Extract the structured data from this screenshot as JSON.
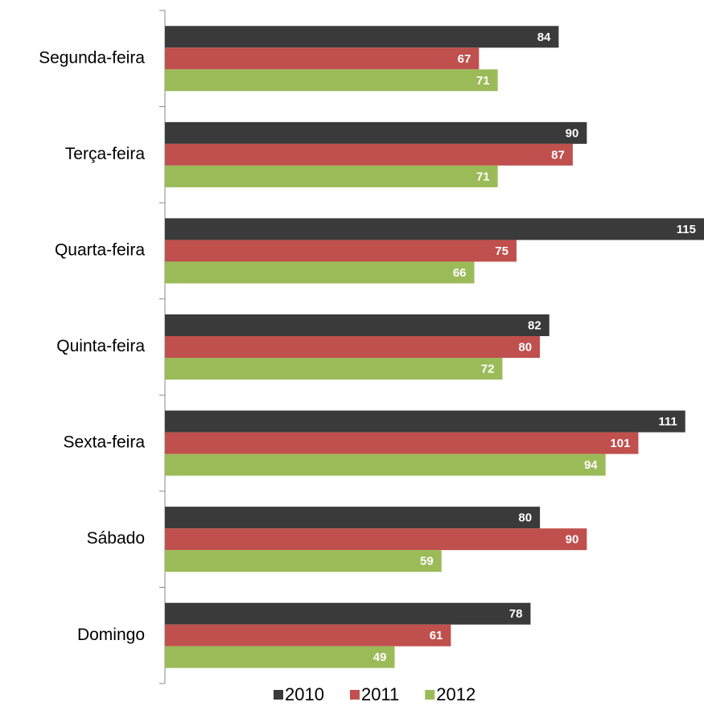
{
  "chart_data": {
    "type": "hbar",
    "categories": [
      "Segunda-feira",
      "Terça-feira",
      "Quarta-feira",
      "Quinta-feira",
      "Sexta-feira",
      "Sábado",
      "Domingo"
    ],
    "series": [
      {
        "name": "2010",
        "color": "#3a3a3a",
        "values": [
          84,
          90,
          115,
          82,
          111,
          80,
          78
        ]
      },
      {
        "name": "2011",
        "color": "#c0504d",
        "values": [
          67,
          87,
          75,
          80,
          101,
          90,
          61
        ]
      },
      {
        "name": "2012",
        "color": "#9bbb59",
        "values": [
          71,
          71,
          66,
          72,
          94,
          59,
          49
        ]
      }
    ],
    "xlim": [
      0,
      115
    ],
    "legend": "bottom"
  }
}
